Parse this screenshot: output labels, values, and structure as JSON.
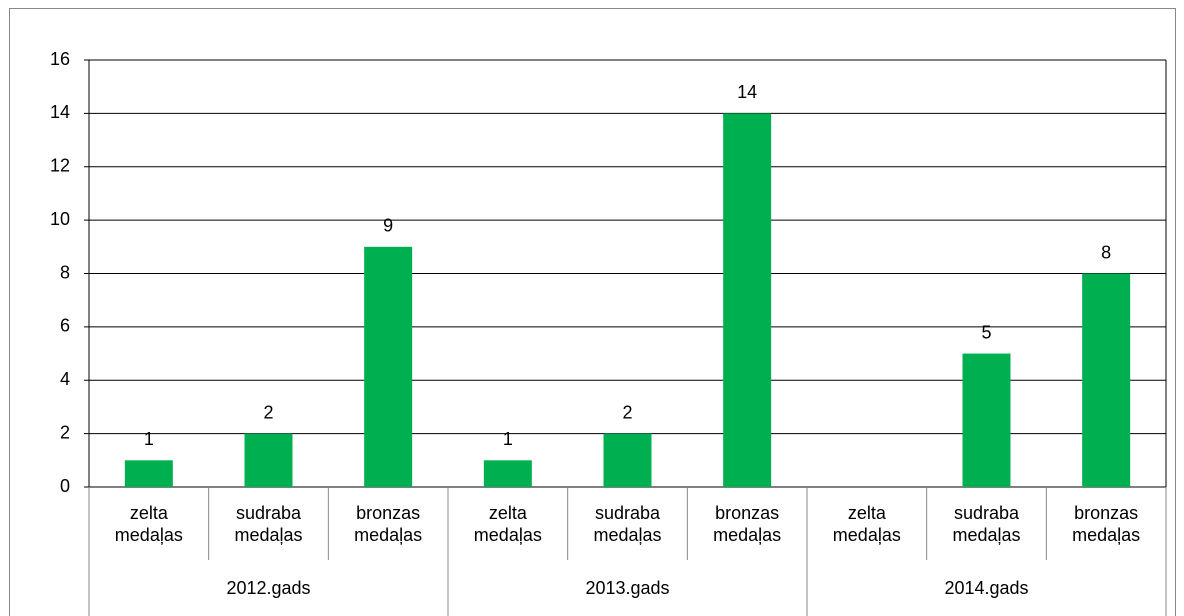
{
  "chart_data": {
    "type": "bar",
    "categories": [
      "zelta medaļas",
      "sudraba medaļas",
      "bronzas medaļas",
      "zelta medaļas",
      "sudraba medaļas",
      "bronzas medaļas",
      "zelta medaļas",
      "sudraba medaļas",
      "bronzas medaļas"
    ],
    "groups": [
      "2012.gads",
      "2013.gads",
      "2014.gads"
    ],
    "values": [
      1,
      2,
      9,
      1,
      2,
      14,
      null,
      5,
      8
    ],
    "color": "#00b050",
    "ylim": [
      0,
      16
    ],
    "yticks": [
      0,
      2,
      4,
      6,
      8,
      10,
      12,
      14,
      16
    ],
    "grid": true
  }
}
